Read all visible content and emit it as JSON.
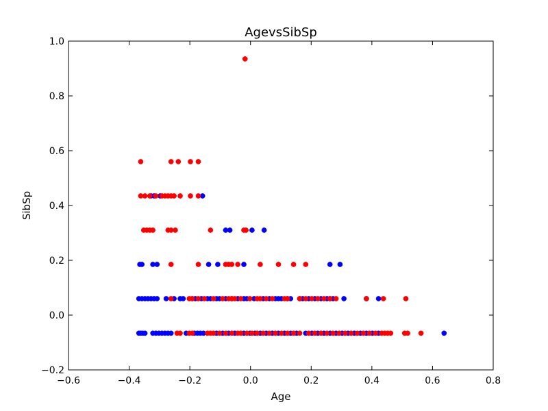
{
  "chart_data": {
    "type": "scatter",
    "title": "AgevsSibSp",
    "xlabel": "Age",
    "ylabel": "SibSp",
    "xlim": [
      -0.6,
      0.8
    ],
    "ylim": [
      -0.2,
      1.0
    ],
    "xticks": [
      -0.6,
      -0.4,
      -0.2,
      0.0,
      0.2,
      0.4,
      0.6,
      0.8
    ],
    "yticks": [
      -0.2,
      0.0,
      0.2,
      0.4,
      0.6,
      0.8,
      1.0
    ],
    "xtick_labels": [
      "−0.6",
      "−0.4",
      "−0.2",
      "0.0",
      "0.2",
      "0.4",
      "0.6",
      "0.8"
    ],
    "ytick_labels": [
      "−0.2",
      "0.0",
      "0.2",
      "0.4",
      "0.6",
      "0.8",
      "1.0"
    ],
    "grid": false,
    "series": [
      {
        "color": "#0000ff",
        "points": [
          [
            -0.368,
            -0.066
          ],
          [
            -0.362,
            -0.066
          ],
          [
            -0.355,
            -0.066
          ],
          [
            -0.348,
            -0.066
          ],
          [
            -0.322,
            -0.066
          ],
          [
            -0.312,
            -0.066
          ],
          [
            -0.302,
            -0.066
          ],
          [
            -0.292,
            -0.066
          ],
          [
            -0.282,
            -0.066
          ],
          [
            -0.272,
            -0.066
          ],
          [
            -0.262,
            -0.066
          ],
          [
            -0.212,
            -0.066
          ],
          [
            -0.185,
            -0.066
          ],
          [
            -0.175,
            -0.066
          ],
          [
            -0.165,
            -0.066
          ],
          [
            -0.155,
            -0.066
          ],
          [
            -0.112,
            -0.066
          ],
          [
            -0.092,
            -0.066
          ],
          [
            -0.072,
            -0.066
          ],
          [
            -0.052,
            -0.066
          ],
          [
            -0.022,
            -0.066
          ],
          [
            -0.002,
            -0.066
          ],
          [
            0.015,
            -0.066
          ],
          [
            0.032,
            -0.066
          ],
          [
            0.052,
            -0.066
          ],
          [
            0.072,
            -0.066
          ],
          [
            0.092,
            -0.066
          ],
          [
            0.112,
            -0.066
          ],
          [
            0.132,
            -0.066
          ],
          [
            0.152,
            -0.066
          ],
          [
            0.182,
            -0.066
          ],
          [
            0.202,
            -0.066
          ],
          [
            0.222,
            -0.066
          ],
          [
            0.242,
            -0.066
          ],
          [
            0.262,
            -0.066
          ],
          [
            0.282,
            -0.066
          ],
          [
            0.302,
            -0.066
          ],
          [
            0.322,
            -0.066
          ],
          [
            0.342,
            -0.066
          ],
          [
            0.362,
            -0.066
          ],
          [
            0.382,
            -0.066
          ],
          [
            0.402,
            -0.066
          ],
          [
            0.422,
            -0.066
          ],
          [
            0.638,
            -0.066
          ],
          [
            -0.368,
            0.06
          ],
          [
            -0.358,
            0.06
          ],
          [
            -0.348,
            0.06
          ],
          [
            -0.338,
            0.06
          ],
          [
            -0.328,
            0.06
          ],
          [
            -0.318,
            0.06
          ],
          [
            -0.308,
            0.06
          ],
          [
            -0.278,
            0.06
          ],
          [
            -0.252,
            0.06
          ],
          [
            -0.232,
            0.06
          ],
          [
            -0.222,
            0.06
          ],
          [
            -0.192,
            0.06
          ],
          [
            -0.182,
            0.06
          ],
          [
            -0.162,
            0.06
          ],
          [
            -0.142,
            0.06
          ],
          [
            -0.132,
            0.06
          ],
          [
            -0.112,
            0.06
          ],
          [
            -0.102,
            0.06
          ],
          [
            -0.082,
            0.06
          ],
          [
            -0.062,
            0.06
          ],
          [
            -0.042,
            0.06
          ],
          [
            -0.022,
            0.06
          ],
          [
            -0.012,
            0.06
          ],
          [
            0.012,
            0.06
          ],
          [
            0.042,
            0.06
          ],
          [
            0.062,
            0.06
          ],
          [
            0.082,
            0.06
          ],
          [
            0.092,
            0.06
          ],
          [
            0.102,
            0.06
          ],
          [
            0.122,
            0.06
          ],
          [
            0.132,
            0.06
          ],
          [
            0.162,
            0.06
          ],
          [
            0.172,
            0.06
          ],
          [
            0.192,
            0.06
          ],
          [
            0.212,
            0.06
          ],
          [
            0.232,
            0.06
          ],
          [
            0.252,
            0.06
          ],
          [
            0.262,
            0.06
          ],
          [
            0.272,
            0.06
          ],
          [
            0.308,
            0.06
          ],
          [
            0.382,
            0.06
          ],
          [
            0.422,
            0.06
          ],
          [
            -0.365,
            0.185
          ],
          [
            -0.358,
            0.185
          ],
          [
            -0.322,
            0.185
          ],
          [
            -0.308,
            0.185
          ],
          [
            -0.138,
            0.185
          ],
          [
            -0.108,
            0.185
          ],
          [
            -0.022,
            0.185
          ],
          [
            0.262,
            0.185
          ],
          [
            0.295,
            0.185
          ],
          [
            -0.082,
            0.31
          ],
          [
            -0.068,
            0.31
          ],
          [
            0.005,
            0.31
          ],
          [
            0.045,
            0.31
          ],
          [
            -0.328,
            0.435
          ],
          [
            -0.318,
            0.435
          ],
          [
            -0.298,
            0.435
          ],
          [
            -0.158,
            0.435
          ]
        ]
      },
      {
        "color": "#ff0000",
        "points": [
          [
            -0.018,
            0.935
          ],
          [
            -0.362,
            0.56
          ],
          [
            -0.262,
            0.56
          ],
          [
            -0.238,
            0.56
          ],
          [
            -0.198,
            0.56
          ],
          [
            -0.172,
            0.56
          ],
          [
            -0.362,
            0.435
          ],
          [
            -0.348,
            0.435
          ],
          [
            -0.332,
            0.435
          ],
          [
            -0.312,
            0.435
          ],
          [
            -0.292,
            0.435
          ],
          [
            -0.282,
            0.435
          ],
          [
            -0.272,
            0.435
          ],
          [
            -0.262,
            0.435
          ],
          [
            -0.252,
            0.435
          ],
          [
            -0.232,
            0.435
          ],
          [
            -0.198,
            0.435
          ],
          [
            -0.172,
            0.435
          ],
          [
            -0.352,
            0.31
          ],
          [
            -0.342,
            0.31
          ],
          [
            -0.332,
            0.31
          ],
          [
            -0.322,
            0.31
          ],
          [
            -0.272,
            0.31
          ],
          [
            -0.262,
            0.31
          ],
          [
            -0.248,
            0.31
          ],
          [
            -0.132,
            0.31
          ],
          [
            -0.022,
            0.31
          ],
          [
            -0.015,
            0.31
          ],
          [
            -0.262,
            0.185
          ],
          [
            -0.172,
            0.185
          ],
          [
            -0.082,
            0.185
          ],
          [
            -0.072,
            0.185
          ],
          [
            -0.062,
            0.185
          ],
          [
            -0.042,
            0.185
          ],
          [
            0.032,
            0.185
          ],
          [
            0.092,
            0.185
          ],
          [
            0.142,
            0.185
          ],
          [
            0.182,
            0.185
          ],
          [
            -0.262,
            0.06
          ],
          [
            -0.202,
            0.06
          ],
          [
            -0.192,
            0.06
          ],
          [
            -0.172,
            0.06
          ],
          [
            -0.152,
            0.06
          ],
          [
            -0.122,
            0.06
          ],
          [
            -0.092,
            0.06
          ],
          [
            -0.072,
            0.06
          ],
          [
            -0.062,
            0.06
          ],
          [
            -0.052,
            0.06
          ],
          [
            -0.032,
            0.06
          ],
          [
            -0.002,
            0.06
          ],
          [
            0.022,
            0.06
          ],
          [
            0.032,
            0.06
          ],
          [
            0.052,
            0.06
          ],
          [
            0.072,
            0.06
          ],
          [
            0.112,
            0.06
          ],
          [
            0.122,
            0.06
          ],
          [
            0.162,
            0.06
          ],
          [
            0.182,
            0.06
          ],
          [
            0.202,
            0.06
          ],
          [
            0.222,
            0.06
          ],
          [
            0.242,
            0.06
          ],
          [
            0.262,
            0.06
          ],
          [
            0.282,
            0.06
          ],
          [
            0.382,
            0.06
          ],
          [
            0.438,
            0.06
          ],
          [
            0.512,
            0.06
          ],
          [
            -0.242,
            -0.066
          ],
          [
            -0.232,
            -0.066
          ],
          [
            -0.202,
            -0.066
          ],
          [
            -0.192,
            -0.066
          ],
          [
            -0.142,
            -0.066
          ],
          [
            -0.132,
            -0.066
          ],
          [
            -0.122,
            -0.066
          ],
          [
            -0.102,
            -0.066
          ],
          [
            -0.082,
            -0.066
          ],
          [
            -0.062,
            -0.066
          ],
          [
            -0.042,
            -0.066
          ],
          [
            -0.032,
            -0.066
          ],
          [
            -0.012,
            -0.066
          ],
          [
            0.005,
            -0.066
          ],
          [
            0.022,
            -0.066
          ],
          [
            0.042,
            -0.066
          ],
          [
            0.062,
            -0.066
          ],
          [
            0.082,
            -0.066
          ],
          [
            0.102,
            -0.066
          ],
          [
            0.122,
            -0.066
          ],
          [
            0.142,
            -0.066
          ],
          [
            0.162,
            -0.066
          ],
          [
            0.192,
            -0.066
          ],
          [
            0.212,
            -0.066
          ],
          [
            0.232,
            -0.066
          ],
          [
            0.252,
            -0.066
          ],
          [
            0.272,
            -0.066
          ],
          [
            0.292,
            -0.066
          ],
          [
            0.312,
            -0.066
          ],
          [
            0.332,
            -0.066
          ],
          [
            0.352,
            -0.066
          ],
          [
            0.372,
            -0.066
          ],
          [
            0.392,
            -0.066
          ],
          [
            0.412,
            -0.066
          ],
          [
            0.432,
            -0.066
          ],
          [
            0.442,
            -0.066
          ],
          [
            0.452,
            -0.066
          ],
          [
            0.462,
            -0.066
          ],
          [
            0.508,
            -0.066
          ],
          [
            0.518,
            -0.066
          ],
          [
            0.562,
            -0.066
          ]
        ]
      }
    ]
  }
}
